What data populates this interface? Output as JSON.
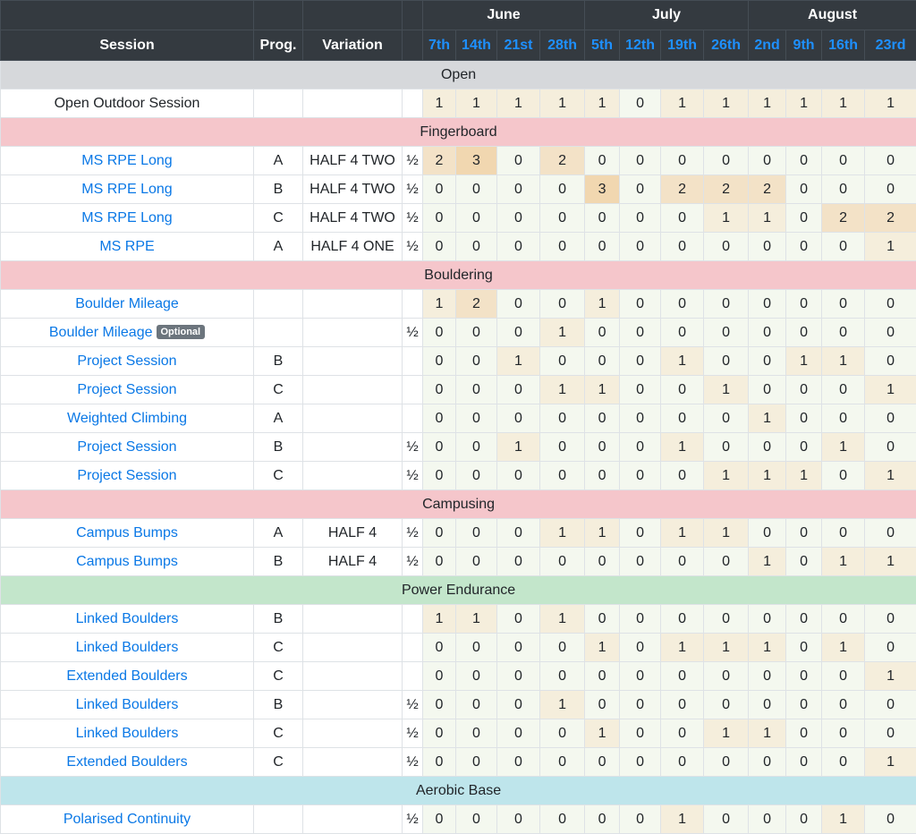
{
  "header": {
    "session": "Session",
    "prog": "Prog.",
    "variation": "Variation",
    "months": [
      "June",
      "July",
      "August"
    ],
    "weeks": [
      "7th",
      "14th",
      "21st",
      "28th",
      "5th",
      "12th",
      "19th",
      "26th",
      "2nd",
      "9th",
      "16th",
      "23rd"
    ]
  },
  "sections": [
    {
      "key": "open",
      "title": "Open",
      "rows": [
        {
          "session": "Open Outdoor Session",
          "link": false,
          "prog": "",
          "variation": "",
          "half": "",
          "values": [
            1,
            1,
            1,
            1,
            1,
            0,
            1,
            1,
            1,
            1,
            1,
            1
          ]
        }
      ]
    },
    {
      "key": "fingerboard",
      "title": "Fingerboard",
      "rows": [
        {
          "session": "MS RPE Long",
          "link": true,
          "prog": "A",
          "variation": "HALF 4 TWO",
          "half": "½",
          "values": [
            2,
            3,
            0,
            2,
            0,
            0,
            0,
            0,
            0,
            0,
            0,
            0
          ]
        },
        {
          "session": "MS RPE Long",
          "link": true,
          "prog": "B",
          "variation": "HALF 4 TWO",
          "half": "½",
          "values": [
            0,
            0,
            0,
            0,
            3,
            0,
            2,
            2,
            2,
            0,
            0,
            0
          ]
        },
        {
          "session": "MS RPE Long",
          "link": true,
          "prog": "C",
          "variation": "HALF 4 TWO",
          "half": "½",
          "values": [
            0,
            0,
            0,
            0,
            0,
            0,
            0,
            1,
            1,
            0,
            2,
            2
          ]
        },
        {
          "session": "MS RPE",
          "link": true,
          "prog": "A",
          "variation": "HALF 4 ONE",
          "half": "½",
          "values": [
            0,
            0,
            0,
            0,
            0,
            0,
            0,
            0,
            0,
            0,
            0,
            1
          ]
        }
      ]
    },
    {
      "key": "bouldering",
      "title": "Bouldering",
      "rows": [
        {
          "session": "Boulder Mileage",
          "link": true,
          "prog": "",
          "variation": "",
          "half": "",
          "values": [
            1,
            2,
            0,
            0,
            1,
            0,
            0,
            0,
            0,
            0,
            0,
            0
          ]
        },
        {
          "session": "Boulder Mileage",
          "badge": "Optional",
          "link": true,
          "prog": "",
          "variation": "",
          "half": "½",
          "values": [
            0,
            0,
            0,
            1,
            0,
            0,
            0,
            0,
            0,
            0,
            0,
            0
          ]
        },
        {
          "session": "Project Session",
          "link": true,
          "prog": "B",
          "variation": "",
          "half": "",
          "values": [
            0,
            0,
            1,
            0,
            0,
            0,
            1,
            0,
            0,
            1,
            1,
            0
          ]
        },
        {
          "session": "Project Session",
          "link": true,
          "prog": "C",
          "variation": "",
          "half": "",
          "values": [
            0,
            0,
            0,
            1,
            1,
            0,
            0,
            1,
            0,
            0,
            0,
            1
          ]
        },
        {
          "session": "Weighted Climbing",
          "link": true,
          "prog": "A",
          "variation": "",
          "half": "",
          "values": [
            0,
            0,
            0,
            0,
            0,
            0,
            0,
            0,
            1,
            0,
            0,
            0
          ]
        },
        {
          "session": "Project Session",
          "link": true,
          "prog": "B",
          "variation": "",
          "half": "½",
          "values": [
            0,
            0,
            1,
            0,
            0,
            0,
            1,
            0,
            0,
            0,
            1,
            0
          ]
        },
        {
          "session": "Project Session",
          "link": true,
          "prog": "C",
          "variation": "",
          "half": "½",
          "values": [
            0,
            0,
            0,
            0,
            0,
            0,
            0,
            1,
            1,
            1,
            0,
            1
          ]
        }
      ]
    },
    {
      "key": "campusing",
      "title": "Campusing",
      "rows": [
        {
          "session": "Campus Bumps",
          "link": true,
          "prog": "A",
          "variation": "HALF 4",
          "half": "½",
          "values": [
            0,
            0,
            0,
            1,
            1,
            0,
            1,
            1,
            0,
            0,
            0,
            0
          ]
        },
        {
          "session": "Campus Bumps",
          "link": true,
          "prog": "B",
          "variation": "HALF 4",
          "half": "½",
          "values": [
            0,
            0,
            0,
            0,
            0,
            0,
            0,
            0,
            1,
            0,
            1,
            1
          ]
        }
      ]
    },
    {
      "key": "power",
      "title": "Power Endurance",
      "rows": [
        {
          "session": "Linked Boulders",
          "link": true,
          "prog": "B",
          "variation": "",
          "half": "",
          "values": [
            1,
            1,
            0,
            1,
            0,
            0,
            0,
            0,
            0,
            0,
            0,
            0
          ]
        },
        {
          "session": "Linked Boulders",
          "link": true,
          "prog": "C",
          "variation": "",
          "half": "",
          "values": [
            0,
            0,
            0,
            0,
            1,
            0,
            1,
            1,
            1,
            0,
            1,
            0
          ]
        },
        {
          "session": "Extended Boulders",
          "link": true,
          "prog": "C",
          "variation": "",
          "half": "",
          "values": [
            0,
            0,
            0,
            0,
            0,
            0,
            0,
            0,
            0,
            0,
            0,
            1
          ]
        },
        {
          "session": "Linked Boulders",
          "link": true,
          "prog": "B",
          "variation": "",
          "half": "½",
          "values": [
            0,
            0,
            0,
            1,
            0,
            0,
            0,
            0,
            0,
            0,
            0,
            0
          ]
        },
        {
          "session": "Linked Boulders",
          "link": true,
          "prog": "C",
          "variation": "",
          "half": "½",
          "values": [
            0,
            0,
            0,
            0,
            1,
            0,
            0,
            1,
            1,
            0,
            0,
            0
          ]
        },
        {
          "session": "Extended Boulders",
          "link": true,
          "prog": "C",
          "variation": "",
          "half": "½",
          "values": [
            0,
            0,
            0,
            0,
            0,
            0,
            0,
            0,
            0,
            0,
            0,
            1
          ]
        }
      ]
    },
    {
      "key": "aerobic",
      "title": "Aerobic Base",
      "rows": [
        {
          "session": "Polarised Continuity",
          "link": true,
          "prog": "",
          "variation": "",
          "half": "½",
          "values": [
            0,
            0,
            0,
            0,
            0,
            0,
            1,
            0,
            0,
            0,
            1,
            0
          ]
        }
      ]
    }
  ]
}
